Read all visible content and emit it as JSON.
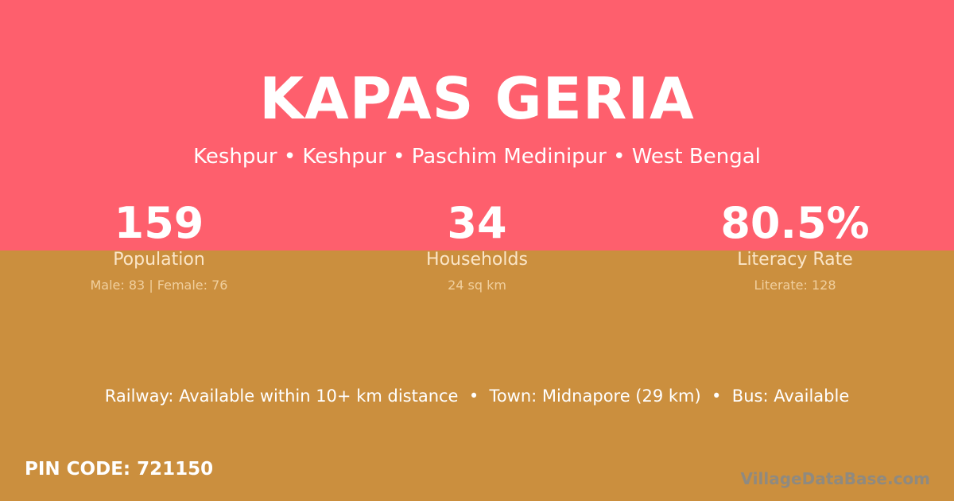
{
  "colors": {
    "top_background": "#fe5f6d",
    "bottom_background": "#cb8f3e"
  },
  "title": "KAPAS GERIA",
  "location": "Keshpur • Keshpur • Paschim Medinipur • West Bengal",
  "stats": [
    {
      "value": "159",
      "label": "Population",
      "detail": "Male: 83 | Female: 76"
    },
    {
      "value": "34",
      "label": "Households",
      "detail": "24 sq km"
    },
    {
      "value": "80.5%",
      "label": "Literacy Rate",
      "detail": "Literate: 128"
    }
  ],
  "connectivity": "Railway: Available within 10+ km distance  •  Town: Midnapore (29 km)  •  Bus: Available",
  "pin_code": "PIN CODE: 721150",
  "watermark": "VillageDataBase.com"
}
